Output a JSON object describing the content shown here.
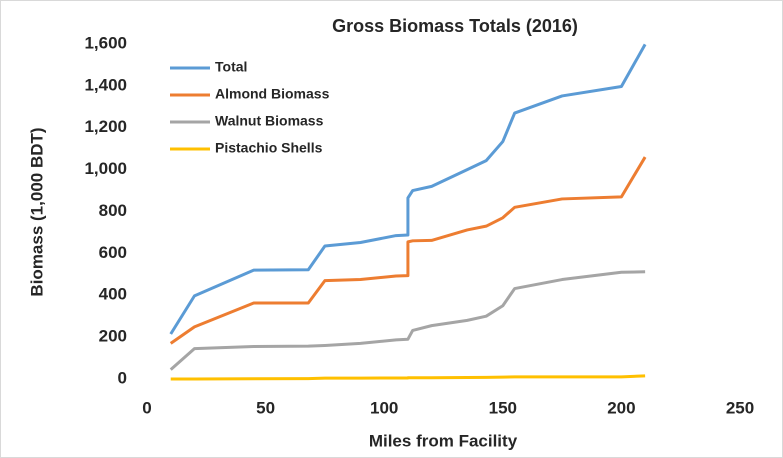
{
  "chart_data": {
    "type": "line",
    "title": "Gross Biomass Totals (2016)",
    "x_label": "Miles from Facility",
    "y_label": "Biomass (1,000 BDT)",
    "x": [
      10,
      20,
      45,
      68,
      75,
      90,
      105,
      110,
      110,
      112,
      120,
      135,
      143,
      150,
      155,
      175,
      200,
      210
    ],
    "series": [
      {
        "name": "Total",
        "color": "#5b9bd5",
        "values": [
          215,
          397,
          520,
          522,
          635,
          652,
          685,
          688,
          865,
          900,
          920,
          1000,
          1043,
          1134,
          1270,
          1352,
          1397,
          1598
        ]
      },
      {
        "name": "Almond Biomass",
        "color": "#ed7d31",
        "values": [
          170,
          249,
          363,
          363,
          470,
          475,
          492,
          494,
          655,
          660,
          662,
          712,
          730,
          770,
          820,
          860,
          870,
          1060
        ]
      },
      {
        "name": "Walnut Biomass",
        "color": "#a5a5a5",
        "values": [
          45,
          145,
          155,
          157,
          160,
          170,
          187,
          190,
          190,
          232,
          255,
          280,
          300,
          350,
          432,
          475,
          510,
          512
        ]
      },
      {
        "name": "Pistachio Shells",
        "color": "#ffc000",
        "values": [
          0,
          0,
          1,
          2,
          4,
          4,
          5,
          5,
          6,
          6,
          6,
          7,
          8,
          9,
          10,
          10,
          10,
          15
        ]
      }
    ],
    "xlim": [
      0,
      250
    ],
    "xticks": [
      0,
      50,
      100,
      150,
      200,
      250
    ],
    "ylim": [
      0,
      1600
    ],
    "yticks": [
      0,
      200,
      400,
      600,
      800,
      {
        "value": 1000,
        "label": "1,000"
      },
      {
        "value": 1200,
        "label": "1,200"
      },
      {
        "value": 1400,
        "label": "1,400"
      },
      {
        "value": 1600,
        "label": "1,600"
      }
    ],
    "grid": false,
    "legend": "upper-left"
  }
}
